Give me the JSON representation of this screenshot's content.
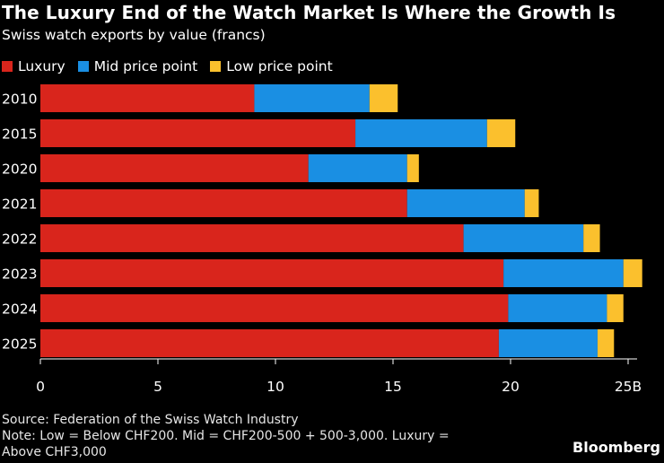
{
  "chart_data": {
    "type": "stacked-bar-horizontal",
    "title": "The Luxury End of the Watch Market Is Where the Growth Is",
    "subtitle": "Swiss watch exports by value (francs)",
    "categories": [
      "2010",
      "2015",
      "2020",
      "2021",
      "2022",
      "2023",
      "2024",
      "2025"
    ],
    "series": [
      {
        "name": "Luxury",
        "color": "#d9251c",
        "values": [
          9.1,
          13.4,
          11.4,
          15.6,
          18.0,
          19.7,
          19.9,
          19.5
        ]
      },
      {
        "name": "Mid price point",
        "color": "#1a8fe3",
        "values": [
          4.9,
          5.6,
          4.2,
          5.0,
          5.1,
          5.1,
          4.2,
          4.2
        ]
      },
      {
        "name": "Low price point",
        "color": "#fbc02d",
        "values": [
          1.2,
          1.2,
          0.5,
          0.6,
          0.7,
          0.8,
          0.7,
          0.7
        ]
      }
    ],
    "xlim": [
      0,
      25
    ],
    "xticks": [
      "0",
      "5",
      "10",
      "15",
      "20",
      "25B"
    ],
    "xtick_values": [
      0,
      5,
      10,
      15,
      20,
      25
    ],
    "legend_position": "top-left"
  },
  "footer": {
    "source": "Source: Federation of the Swiss Watch Industry",
    "note_line1": "Note: Low = Below CHF200. Mid = CHF200-500 + 500-3,000. Luxury =",
    "note_line2": "Above CHF3,000"
  },
  "brand": "Bloomberg"
}
